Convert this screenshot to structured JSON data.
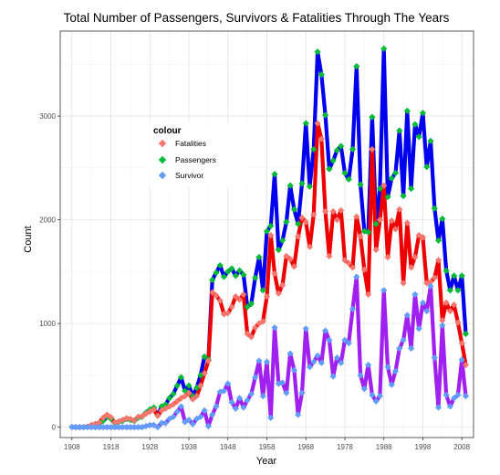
{
  "chart_data": {
    "type": "line",
    "title": "Total Number of Passengers, Survivors & Fatalities Through The Years",
    "xlabel": "Year",
    "ylabel": "Count",
    "xlim": [
      1905,
      2011
    ],
    "ylim": [
      -100,
      3820
    ],
    "x_ticks": [
      1908,
      1918,
      1928,
      1938,
      1948,
      1958,
      1968,
      1978,
      1988,
      1998,
      2008
    ],
    "y_ticks": [
      0,
      1000,
      2000,
      3000
    ],
    "grid": true,
    "legend": {
      "title": "colour",
      "placement": "inside-top-left",
      "entries": [
        "Fatalities",
        "Passengers",
        "Survivor"
      ]
    },
    "colors": {
      "passengers_line": "#0000ee",
      "fatalities_line": "#ee0000",
      "survivor_line": "#a020f0",
      "fatalities_point": "#f8766d",
      "passengers_point": "#00ba38",
      "survivor_point": "#619cff"
    },
    "x": [
      1908,
      1909,
      1910,
      1911,
      1912,
      1913,
      1914,
      1915,
      1916,
      1917,
      1918,
      1919,
      1920,
      1921,
      1922,
      1923,
      1924,
      1925,
      1926,
      1927,
      1928,
      1929,
      1930,
      1931,
      1932,
      1933,
      1934,
      1935,
      1936,
      1937,
      1938,
      1939,
      1940,
      1941,
      1942,
      1943,
      1944,
      1945,
      1946,
      1947,
      1948,
      1949,
      1950,
      1951,
      1952,
      1953,
      1954,
      1955,
      1956,
      1957,
      1958,
      1959,
      1960,
      1961,
      1962,
      1963,
      1964,
      1965,
      1966,
      1967,
      1968,
      1969,
      1970,
      1971,
      1972,
      1973,
      1974,
      1975,
      1976,
      1977,
      1978,
      1979,
      1980,
      1981,
      1982,
      1983,
      1984,
      1985,
      1986,
      1987,
      1988,
      1989,
      1990,
      1991,
      1992,
      1993,
      1994,
      1995,
      1996,
      1997,
      1998,
      1999,
      2000,
      2001,
      2002,
      2003,
      2004,
      2005,
      2006,
      2007,
      2008,
      2009
    ],
    "series": [
      {
        "name": "Passengers",
        "values": [
          2,
          0,
          0,
          0,
          5,
          20,
          30,
          35,
          60,
          100,
          80,
          40,
          50,
          60,
          80,
          70,
          60,
          90,
          100,
          140,
          170,
          190,
          110,
          200,
          220,
          280,
          320,
          400,
          480,
          350,
          400,
          300,
          380,
          500,
          680,
          650,
          1420,
          1490,
          1560,
          1450,
          1500,
          1530,
          1460,
          1510,
          1470,
          1160,
          1190,
          1440,
          1640,
          1320,
          1890,
          1940,
          2440,
          1710,
          1800,
          1980,
          2330,
          2100,
          1960,
          2350,
          2930,
          2320,
          2680,
          3620,
          3400,
          3010,
          2490,
          2570,
          2670,
          2710,
          2450,
          2390,
          2680,
          3480,
          2340,
          1890,
          1880,
          2990,
          1960,
          2300,
          3650,
          2220,
          2400,
          2450,
          2860,
          2230,
          3050,
          2300,
          2920,
          2800,
          3030,
          2510,
          2760,
          2110,
          1800,
          2010,
          1510,
          1320,
          1460,
          1320,
          1460,
          900
        ]
      },
      {
        "name": "Fatalities",
        "values": [
          1,
          0,
          0,
          0,
          5,
          20,
          30,
          45,
          90,
          120,
          95,
          45,
          55,
          70,
          85,
          80,
          65,
          100,
          105,
          130,
          150,
          170,
          110,
          160,
          180,
          200,
          220,
          250,
          280,
          300,
          330,
          270,
          300,
          400,
          520,
          640,
          1300,
          1270,
          1220,
          1090,
          1100,
          1160,
          1260,
          1230,
          1280,
          900,
          870,
          960,
          1000,
          1020,
          1260,
          1850,
          1480,
          1290,
          1370,
          1650,
          1620,
          1550,
          1840,
          2020,
          1980,
          1740,
          2050,
          2930,
          2780,
          2080,
          1650,
          2080,
          2000,
          2090,
          1610,
          1580,
          1540,
          2030,
          1840,
          1520,
          1280,
          2680,
          1710,
          2000,
          2330,
          1640,
          1990,
          1910,
          2100,
          1390,
          1970,
          1540,
          1640,
          1850,
          1830,
          1390,
          1400,
          1440,
          1610,
          1030,
          1200,
          1120,
          1180,
          1010,
          810,
          600
        ]
      },
      {
        "name": "Survivor",
        "values": [
          1,
          0,
          0,
          0,
          0,
          0,
          0,
          0,
          0,
          0,
          0,
          0,
          0,
          0,
          0,
          0,
          0,
          0,
          0,
          10,
          20,
          20,
          0,
          40,
          40,
          80,
          100,
          150,
          200,
          50,
          70,
          30,
          80,
          100,
          160,
          10,
          120,
          200,
          340,
          350,
          420,
          240,
          180,
          280,
          190,
          260,
          320,
          480,
          640,
          300,
          630,
          90,
          960,
          420,
          430,
          330,
          710,
          550,
          120,
          330,
          950,
          580,
          630,
          690,
          620,
          930,
          840,
          490,
          670,
          620,
          840,
          810,
          1140,
          1450,
          500,
          370,
          600,
          310,
          250,
          300,
          1320,
          580,
          410,
          540,
          760,
          840,
          1080,
          760,
          1280,
          950,
          1200,
          1120,
          1360,
          670,
          190,
          980,
          310,
          200,
          280,
          310,
          650,
          300
        ]
      }
    ]
  }
}
